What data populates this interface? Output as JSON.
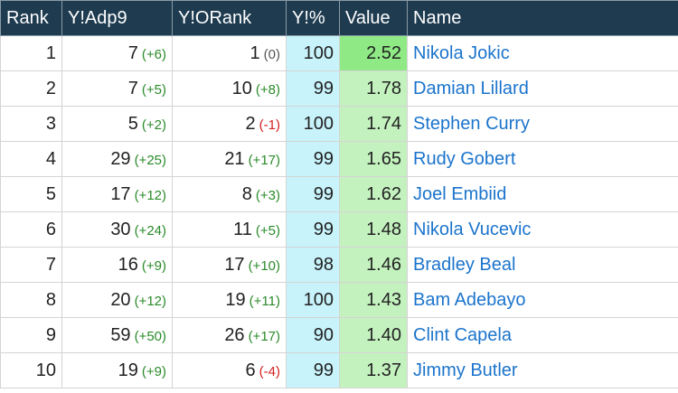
{
  "table": {
    "headers": [
      "Rank",
      "Y!Adp9",
      "Y!ORank",
      "Y!%",
      "Value",
      "Name"
    ],
    "rows": [
      [
        "1",
        "7",
        "(+6)",
        "1",
        "(0)",
        "100",
        "2.52",
        "Nikola Jokic"
      ],
      [
        "2",
        "7",
        "(+5)",
        "10",
        "(+8)",
        "99",
        "1.78",
        "Damian Lillard"
      ],
      [
        "3",
        "5",
        "(+2)",
        "2",
        "(-1)",
        "100",
        "1.74",
        "Stephen Curry"
      ],
      [
        "4",
        "29",
        "(+25)",
        "21",
        "(+17)",
        "99",
        "1.65",
        "Rudy Gobert"
      ],
      [
        "5",
        "17",
        "(+12)",
        "8",
        "(+3)",
        "99",
        "1.62",
        "Joel Embiid"
      ],
      [
        "6",
        "30",
        "(+24)",
        "11",
        "(+5)",
        "99",
        "1.48",
        "Nikola Vucevic"
      ],
      [
        "7",
        "16",
        "(+9)",
        "17",
        "(+10)",
        "98",
        "1.46",
        "Bradley Beal"
      ],
      [
        "8",
        "20",
        "(+12)",
        "19",
        "(+11)",
        "100",
        "1.43",
        "Bam Adebayo"
      ],
      [
        "9",
        "59",
        "(+50)",
        "26",
        "(+17)",
        "90",
        "1.40",
        "Clint Capela"
      ],
      [
        "10",
        "19",
        "(+9)",
        "6",
        "(-4)",
        "99",
        "1.37",
        "Jimmy Butler"
      ]
    ]
  }
}
